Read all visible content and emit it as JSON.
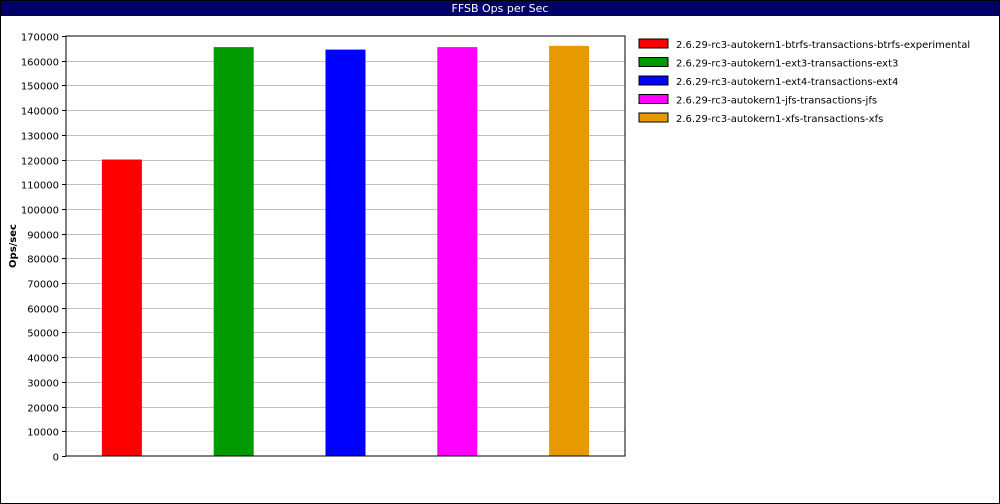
{
  "chart_data": {
    "type": "bar",
    "title": "FFSB Ops per Sec",
    "xlabel": "",
    "ylabel": "Ops/sec",
    "ylim": [
      0,
      170000
    ],
    "ytick_step": 10000,
    "grid": true,
    "legend_position": "right",
    "series": [
      {
        "name": "2.6.29-rc3-autokern1-btrfs-transactions-btrfs-experimental",
        "value": 120000,
        "color": "#ff0000"
      },
      {
        "name": "2.6.29-rc3-autokern1-ext3-transactions-ext3",
        "value": 165500,
        "color": "#009900"
      },
      {
        "name": "2.6.29-rc3-autokern1-ext4-transactions-ext4",
        "value": 164500,
        "color": "#0000ff"
      },
      {
        "name": "2.6.29-rc3-autokern1-jfs-transactions-jfs",
        "value": 165500,
        "color": "#ff00ff"
      },
      {
        "name": "2.6.29-rc3-autokern1-xfs-transactions-xfs",
        "value": 166000,
        "color": "#e69900"
      }
    ]
  }
}
